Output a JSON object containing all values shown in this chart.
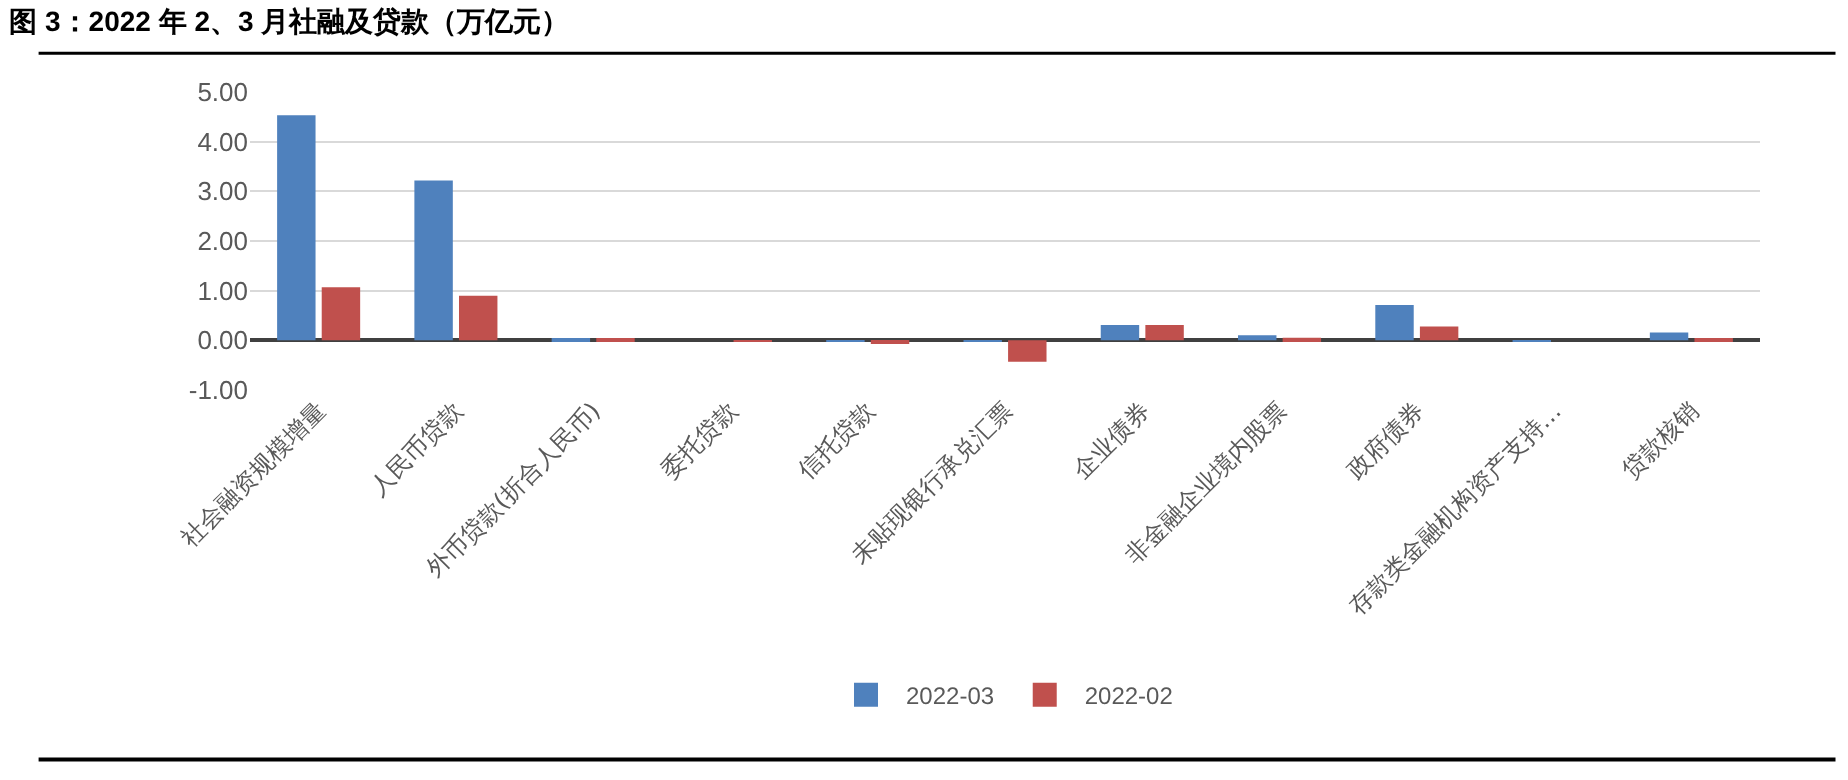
{
  "chart_data": {
    "type": "bar",
    "title": "图 3：2022 年 2、3 月社融及贷款（万亿元）",
    "categories": [
      "社会融资规模增量",
      "人民币贷款",
      "外币贷款(折合人民币)",
      "委托贷款",
      "信托贷款",
      "未贴现银行承兑汇票",
      "企业债券",
      "非金融企业境内股票",
      "政府债券",
      "存款类金融机构资产支持…",
      "贷款核销"
    ],
    "series": [
      {
        "name": "2022-03",
        "color": "#4f81bd",
        "values": [
          4.53,
          3.22,
          0.01,
          0.0,
          -0.01,
          -0.01,
          0.31,
          0.1,
          0.71,
          -0.01,
          0.16
        ]
      },
      {
        "name": "2022-02",
        "color": "#c0504d",
        "values": [
          1.07,
          0.9,
          0.01,
          -0.01,
          -0.07,
          -0.43,
          0.31,
          0.05,
          0.28,
          0.0,
          0.01
        ]
      }
    ],
    "ylim": [
      -1,
      5
    ],
    "yticks": [
      {
        "value": -1,
        "label": "-1.00"
      },
      {
        "value": 0,
        "label": "0.00"
      },
      {
        "value": 1,
        "label": "1.00"
      },
      {
        "value": 2,
        "label": "2.00"
      },
      {
        "value": 3,
        "label": "3.00"
      },
      {
        "value": 4,
        "label": "4.00"
      },
      {
        "value": 5,
        "label": "5.00"
      }
    ],
    "grid": "y",
    "legend": "bottom"
  }
}
